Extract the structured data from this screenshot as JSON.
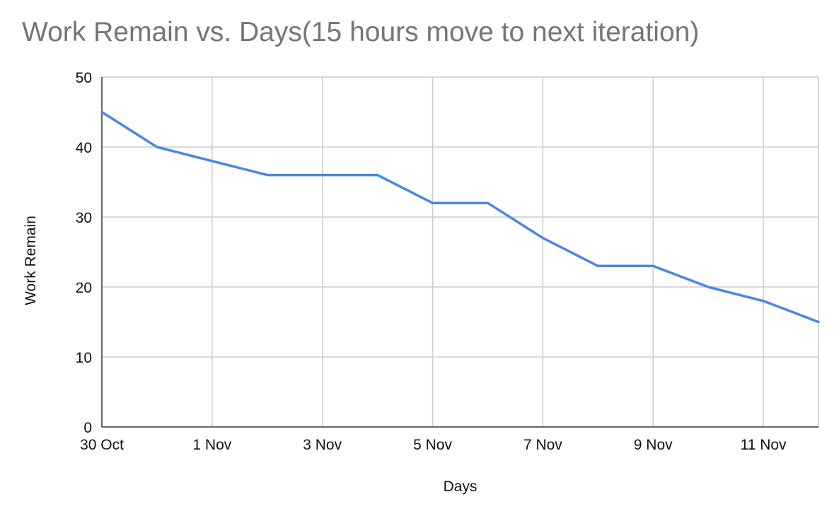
{
  "chart_data": {
    "type": "line",
    "title": "Work Remain vs. Days(15 hours move to next iteration)",
    "xlabel": "Days",
    "ylabel": "Work Remain",
    "x": [
      "30 Oct",
      "31 Oct",
      "1 Nov",
      "2 Nov",
      "3 Nov",
      "4 Nov",
      "5 Nov",
      "6 Nov",
      "7 Nov",
      "8 Nov",
      "9 Nov",
      "10 Nov",
      "11 Nov",
      "12 Nov"
    ],
    "series": [
      {
        "values": [
          45,
          40,
          38,
          36,
          36,
          36,
          32,
          32,
          27,
          23,
          23,
          20,
          18,
          15
        ]
      }
    ],
    "xticks": [
      "30 Oct",
      "1 Nov",
      "3 Nov",
      "5 Nov",
      "7 Nov",
      "9 Nov",
      "11 Nov"
    ],
    "yticks": [
      0,
      10,
      20,
      30,
      40,
      50
    ],
    "ylim": [
      0,
      50
    ],
    "grid": true,
    "legend": "none",
    "colors": {
      "line": "#4a86e8",
      "grid": "#cccccc",
      "axis": "#333333",
      "title": "#757575"
    }
  }
}
